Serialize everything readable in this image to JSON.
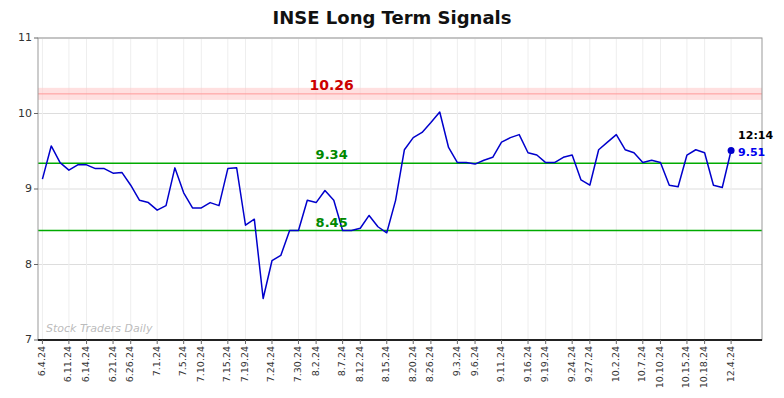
{
  "chart_data": {
    "type": "line",
    "title": "INSE Long Term Signals",
    "categories": [
      "6.4.24",
      null,
      null,
      "6.11.24",
      null,
      "6.14.24",
      null,
      null,
      "6.21.24",
      null,
      "6.26.24",
      null,
      null,
      "7.1.24",
      null,
      null,
      "7.5.24",
      null,
      "7.10.24",
      null,
      null,
      "7.15.24",
      null,
      "7.19.24",
      null,
      null,
      "7.24.24",
      null,
      null,
      "7.30.24",
      null,
      "8.2.24",
      null,
      null,
      "8.7.24",
      null,
      "8.12.24",
      null,
      null,
      "8.15.24",
      null,
      null,
      "8.20.24",
      null,
      "8.26.24",
      null,
      null,
      "9.3.24",
      null,
      "9.6.24",
      null,
      null,
      "9.11.24",
      null,
      null,
      "9.16.24",
      null,
      "9.19.24",
      null,
      null,
      "9.24.24",
      null,
      "9.27.24",
      null,
      null,
      "10.2.24",
      null,
      null,
      "10.7.24",
      null,
      "10.10.24",
      null,
      null,
      "10.15.24",
      null,
      "10.18.24",
      null,
      null,
      "12.4.24"
    ],
    "values": [
      9.13,
      9.57,
      9.35,
      9.25,
      9.32,
      9.32,
      9.27,
      9.27,
      9.21,
      9.22,
      9.05,
      8.85,
      8.82,
      8.72,
      8.78,
      9.28,
      8.95,
      8.75,
      8.75,
      8.82,
      8.78,
      9.27,
      9.28,
      8.52,
      8.6,
      7.55,
      8.05,
      8.12,
      8.45,
      8.45,
      8.85,
      8.82,
      8.98,
      8.85,
      8.45,
      8.45,
      8.48,
      8.65,
      8.5,
      8.42,
      8.85,
      9.52,
      9.68,
      9.75,
      9.88,
      10.02,
      9.55,
      9.35,
      9.35,
      9.33,
      9.38,
      9.42,
      9.62,
      9.68,
      9.72,
      9.48,
      9.45,
      9.35,
      9.35,
      9.42,
      9.45,
      9.12,
      9.05,
      9.52,
      9.62,
      9.72,
      9.52,
      9.48,
      9.35,
      9.38,
      9.35,
      9.05,
      9.03,
      9.45,
      9.52,
      9.48,
      9.05,
      9.02,
      9.51
    ],
    "color": "#0000cc",
    "ylim": [
      7.0,
      11.0
    ],
    "yticks": [
      7,
      8,
      9,
      10,
      11
    ],
    "grid": true,
    "hlines": [
      {
        "value": 10.26,
        "label": "10.26",
        "color": "#ff9999",
        "label_color": "#cc0000",
        "band": [
          10.18,
          10.34
        ],
        "band_color": "#ffcccc"
      },
      {
        "value": 9.34,
        "label": "9.34",
        "color": "#00aa00",
        "label_color": "#008800"
      },
      {
        "value": 8.45,
        "label": "8.45",
        "color": "#00aa00",
        "label_color": "#008800"
      }
    ],
    "annotations": [
      {
        "text": "12:14",
        "color": "#000000"
      },
      {
        "text": "9.51",
        "color": "#0000ee"
      }
    ],
    "watermark": {
      "text": "Stock Traders Daily",
      "color": "#aaaaaa"
    }
  }
}
